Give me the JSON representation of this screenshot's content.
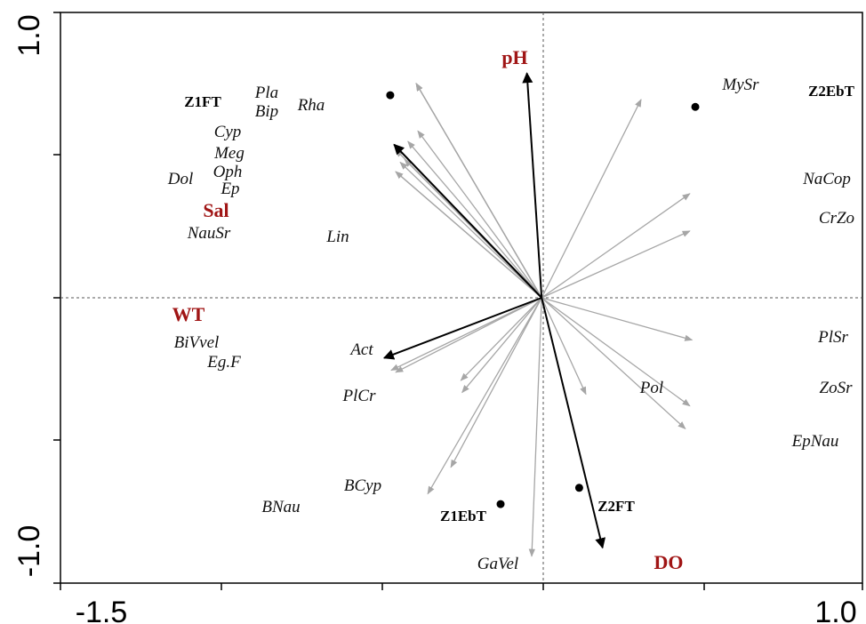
{
  "chart_data": {
    "type": "scatter",
    "subtype": "ordination-biplot",
    "title": "",
    "xlabel": "",
    "ylabel": "",
    "xlim": [
      -1.5,
      1.0
    ],
    "ylim": [
      -1.0,
      1.0
    ],
    "x_tick_labels": [
      "-1.5",
      "1.0"
    ],
    "y_tick_labels": [
      "1.0",
      "-1.0"
    ],
    "colors": {
      "species_arrow": "#a6a6a6",
      "env_arrow": "#000000",
      "env_label": "#a01515",
      "site_point": "#000000",
      "zero_line": "#555555"
    },
    "env_vectors": [
      {
        "label": "pH",
        "x": -0.046,
        "y": 0.787
      },
      {
        "label": "Sal",
        "x": -0.46,
        "y": 0.537
      },
      {
        "label": "WT",
        "x": -0.491,
        "y": -0.211
      },
      {
        "label": "DO",
        "x": 0.19,
        "y": -0.876
      }
    ],
    "species_vectors": [
      {
        "label": "Pla",
        "x": -0.391,
        "y": 0.751
      },
      {
        "label": "Bip",
        "x": -0.391,
        "y": 0.751
      },
      {
        "label": "Rha",
        "x": -0.391,
        "y": 0.751
      },
      {
        "label": "Cyp",
        "x": -0.386,
        "y": 0.585
      },
      {
        "label": "Meg",
        "x": -0.417,
        "y": 0.548
      },
      {
        "label": "Oph",
        "x": -0.441,
        "y": 0.475
      },
      {
        "label": "Dol",
        "x": -0.455,
        "y": 0.442
      },
      {
        "label": "Ep",
        "x": -0.455,
        "y": 0.442
      },
      {
        "label": "NauSr",
        "x": -0.455,
        "y": 0.519
      },
      {
        "label": "Lin",
        "x": -0.427,
        "y": 0.485
      },
      {
        "label": "MySr",
        "x": 0.31,
        "y": 0.695
      },
      {
        "label": "NaCop",
        "x": 0.462,
        "y": 0.365
      },
      {
        "label": "CrZo",
        "x": 0.462,
        "y": 0.234
      },
      {
        "label": "PlSr",
        "x": 0.469,
        "y": -0.148
      },
      {
        "label": "ZoSr",
        "x": 0.462,
        "y": -0.379
      },
      {
        "label": "EpNau",
        "x": 0.448,
        "y": -0.459
      },
      {
        "label": "Pol",
        "x": 0.138,
        "y": -0.338
      },
      {
        "label": "BiVvel",
        "x": -0.455,
        "y": -0.261
      },
      {
        "label": "Eg.F",
        "x": -0.469,
        "y": -0.254
      },
      {
        "label": "Act",
        "x": -0.252,
        "y": -0.29
      },
      {
        "label": "PlCr",
        "x": -0.248,
        "y": -0.332
      },
      {
        "label": "BCyp",
        "x": -0.283,
        "y": -0.594
      },
      {
        "label": "BNau",
        "x": -0.355,
        "y": -0.687
      },
      {
        "label": "GaVel",
        "x": -0.031,
        "y": -0.906
      }
    ],
    "sites": [
      {
        "label": "Z1FT",
        "x": -0.472,
        "y": 0.71
      },
      {
        "label": "Z2EbT",
        "x": 0.479,
        "y": 0.669
      },
      {
        "label": "Z1EbT",
        "x": -0.128,
        "y": -0.723
      },
      {
        "label": "Z2FT",
        "x": 0.117,
        "y": -0.666
      }
    ]
  }
}
